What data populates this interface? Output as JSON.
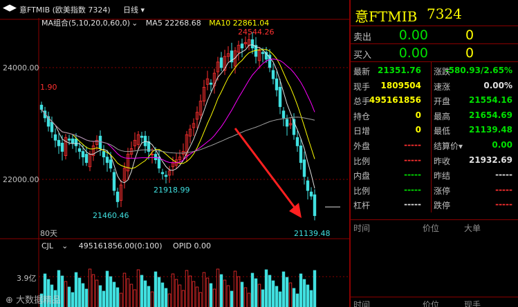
{
  "header": {
    "nav_left": "◀",
    "nav_right": "▶",
    "title": "意FTMIB (欧美指数 7324)",
    "period": "日线",
    "period_arrow": "▾"
  },
  "ma_legend": {
    "group": "MA组合(5,10,20,0,60,0)",
    "ma5": "MA5 22268.68",
    "ma10": "MA10 22861.04"
  },
  "chart_labels": {
    "high": "24544.26",
    "left_edge": "1.90",
    "low1": "21460.46",
    "low2": "21918.99",
    "low3": "21139.48",
    "axis_24000": "24000.00",
    "axis_22000": "22000.00",
    "bars_count": "80天",
    "vol_axis": "3.9亿"
  },
  "vol_legend": {
    "cjl": "CJL",
    "value": "495161856.00(0:100)",
    "opid": "OPID 0.00"
  },
  "watermark": "大数据精品",
  "panel": {
    "name": "意FTMIB",
    "code": "7324",
    "sell": {
      "label": "卖出",
      "price": "0.00",
      "qty": "0"
    },
    "buy": {
      "label": "买入",
      "price": "0.00",
      "qty": "0"
    },
    "rows": [
      {
        "l1": "最新",
        "v1": "21351.76",
        "c1": "green",
        "l2": "涨跌",
        "v2": "-580.93/2.65%",
        "c2": "green"
      },
      {
        "l1": "现手",
        "v1": "1809504",
        "c1": "yellow",
        "l2": "速涨",
        "v2": "0.00%",
        "c2": "white"
      },
      {
        "l1": "总手",
        "v1": "495161856",
        "c1": "yellow",
        "l2": "开盘",
        "v2": "21554.16",
        "c2": "green"
      },
      {
        "l1": "持仓",
        "v1": "0",
        "c1": "yellow",
        "l2": "最高",
        "v2": "21654.69",
        "c2": "green"
      },
      {
        "l1": "日增",
        "v1": "0",
        "c1": "yellow",
        "l2": "最低",
        "v2": "21139.48",
        "c2": "green"
      },
      {
        "l1": "外盘",
        "v1": "-----",
        "c1": "red",
        "l2": "结算价▾",
        "v2": "0.00",
        "c2": "green"
      },
      {
        "l1": "比例",
        "v1": "-----",
        "c1": "red",
        "l2": "昨收",
        "v2": "21932.69",
        "c2": "white"
      },
      {
        "l1": "内盘",
        "v1": "-----",
        "c1": "green",
        "l2": "昨结",
        "v2": "-----",
        "c2": "white"
      },
      {
        "l1": "比例",
        "v1": "-----",
        "c1": "green",
        "l2": "涨停",
        "v2": "-----",
        "c2": "red"
      },
      {
        "l1": "杠杆",
        "v1": "-----",
        "c1": "white",
        "l2": "跌停",
        "v2": "-----",
        "c2": "red"
      }
    ],
    "ticks_header": {
      "time": "时间",
      "price": "价位",
      "vol": "大单"
    },
    "ticks_header2": {
      "time": "时间",
      "price": "价位",
      "vol": "现手"
    }
  },
  "colors": {
    "up": "#ff3030",
    "down": "#40e0e0",
    "ma5": "#e0e0e0",
    "ma10": "#ffff00",
    "ma20": "#ff00ff",
    "ma60": "#a0a0a0",
    "arrow": "#ff2020",
    "border": "#8b0000"
  },
  "chart_data": {
    "type": "candlestick",
    "bars": 80,
    "ylim": [
      20900,
      24800
    ],
    "highest": 24544.26,
    "lowest": 21139.48,
    "volume_axis_label": "3.9亿"
  }
}
